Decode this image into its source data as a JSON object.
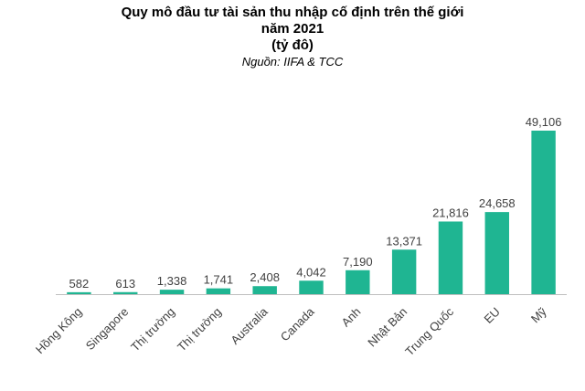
{
  "chart_data": {
    "type": "bar",
    "title": [
      "Quy mô đầu tư tài sản thu nhập cố định trên thế giới",
      "năm 2021",
      "(tỷ đô)"
    ],
    "subtitle": "Nguồn: IIFA & TCC",
    "categories": [
      "Hồng Kông",
      "Singapore",
      "Thị trường",
      "Thị trường",
      "Australia",
      "Canada",
      "Anh",
      "Nhật Bản",
      "Trung Quốc",
      "EU",
      "Mỹ"
    ],
    "values": [
      582,
      613,
      1338,
      1741,
      2408,
      4042,
      7190,
      13371,
      21816,
      24658,
      49106
    ],
    "value_labels": [
      "582",
      "613",
      "1,338",
      "1,741",
      "2,408",
      "4,042",
      "7,190",
      "13,371",
      "21,816",
      "24,658",
      "49,106"
    ],
    "color": "#1fb592"
  }
}
